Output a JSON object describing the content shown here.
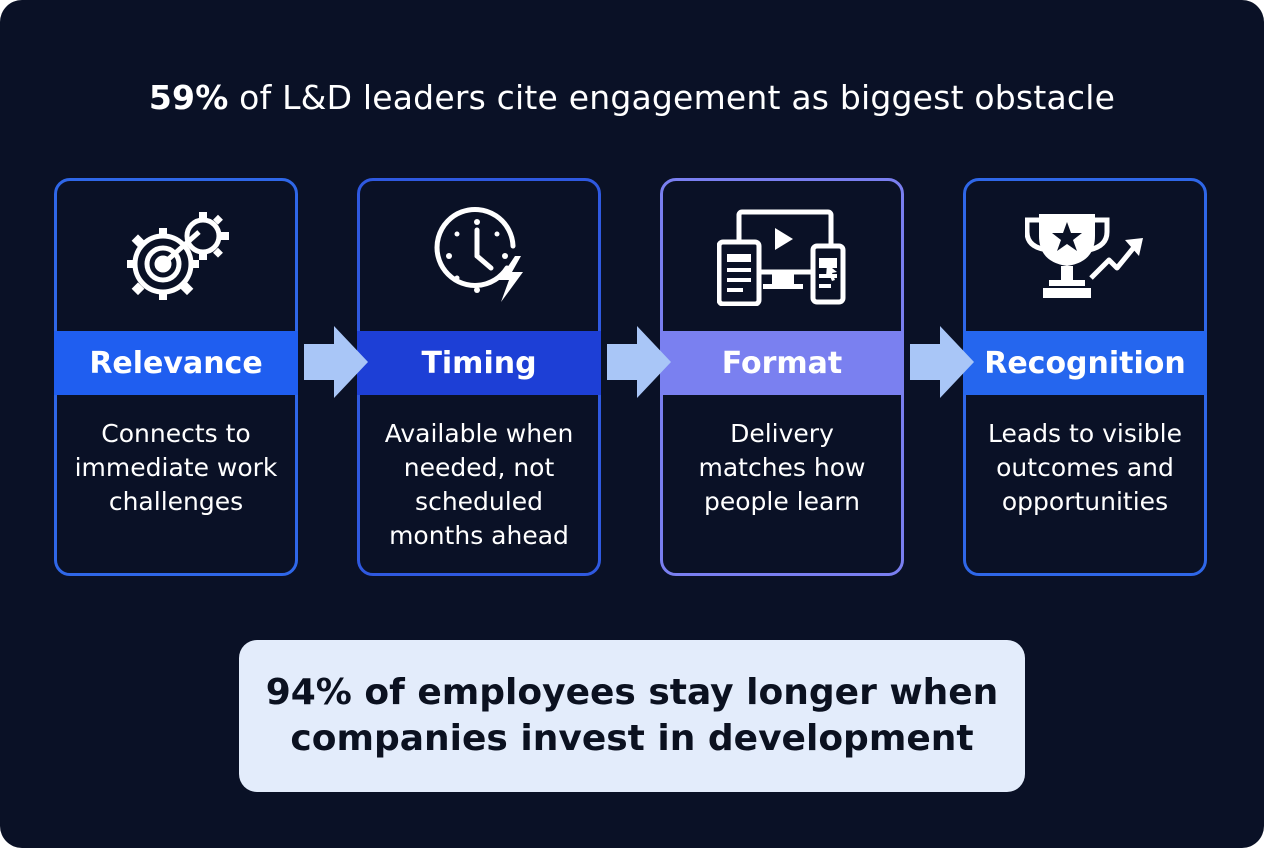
{
  "headline": {
    "highlight": "59%",
    "rest": " of L&D leaders cite engagement as biggest obstacle"
  },
  "cards": [
    {
      "title": "Relevance",
      "icon": "gear-target-icon",
      "description": "Connects to immediate work challenges",
      "band_color": "#1f5ef0"
    },
    {
      "title": "Timing",
      "icon": "clock-lightning-icon",
      "description": "Available when needed, not scheduled months ahead",
      "band_color": "#1d3fd6"
    },
    {
      "title": "Format",
      "icon": "devices-icon",
      "description": "Delivery matches how people learn",
      "band_color": "#7a80f0"
    },
    {
      "title": "Recognition",
      "icon": "trophy-growth-icon",
      "description": "Leads to visible outcomes and opportunities",
      "band_color": "#2566ee"
    }
  ],
  "callout": {
    "text": "94% of employees stay longer when companies invest in development"
  },
  "colors": {
    "background": "#0a1126",
    "card_border": "#2f67e8",
    "arrow": "#a9c6f7",
    "callout_bg": "#e3ecfb"
  }
}
